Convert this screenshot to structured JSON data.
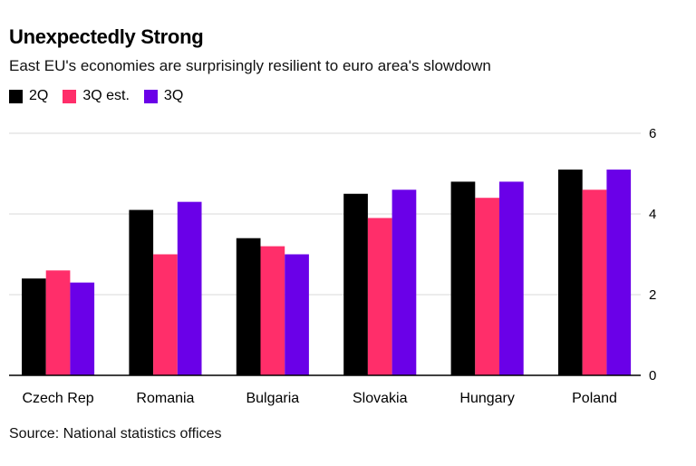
{
  "chart_data": {
    "type": "bar",
    "title": "Unexpectedly Strong",
    "subtitle": "East EU's economies are surprisingly resilient to euro area's slowdown",
    "categories": [
      "Czech Rep",
      "Romania",
      "Bulgaria",
      "Slovakia",
      "Hungary",
      "Poland"
    ],
    "series": [
      {
        "name": "2Q",
        "color": "#000000",
        "values": [
          2.4,
          4.1,
          3.4,
          4.5,
          4.8,
          5.1
        ]
      },
      {
        "name": "3Q est.",
        "color": "#ff2e6a",
        "values": [
          2.6,
          3.0,
          3.2,
          3.9,
          4.4,
          4.6
        ]
      },
      {
        "name": "3Q",
        "color": "#6a00e8",
        "values": [
          2.3,
          4.3,
          3.0,
          4.6,
          4.8,
          5.1
        ]
      }
    ],
    "y_ticks": [
      "0",
      "2",
      "4",
      "6"
    ],
    "ylim": [
      0,
      6
    ],
    "xlabel": "",
    "ylabel": "",
    "grid": true,
    "legend_position": "top-left",
    "source": "Source: National statistics offices"
  }
}
